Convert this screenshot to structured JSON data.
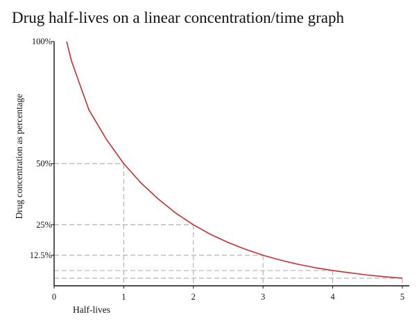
{
  "chart_data": {
    "type": "line",
    "title": "Drug half-lives on a linear concentration/time graph",
    "xlabel": "Half-lives",
    "ylabel": "Drug concentration as percentage",
    "xlim": [
      0,
      5.1
    ],
    "ylim": [
      0,
      100
    ],
    "x_ticks": [
      {
        "value": 0,
        "label": "0"
      },
      {
        "value": 1,
        "label": "1"
      },
      {
        "value": 2,
        "label": "2"
      },
      {
        "value": 3,
        "label": "3"
      },
      {
        "value": 4,
        "label": "4"
      },
      {
        "value": 5,
        "label": "5"
      }
    ],
    "y_ticks": [
      {
        "value": 100,
        "label": "100%"
      },
      {
        "value": 50,
        "label": "50%"
      },
      {
        "value": 25,
        "label": "25%"
      },
      {
        "value": 12.5,
        "label": "12.5%"
      }
    ],
    "series": [
      {
        "x": [
          0.18,
          0.25,
          0.35,
          0.5,
          0.75,
          1,
          1.25,
          1.5,
          1.75,
          2,
          2.25,
          2.5,
          2.75,
          3,
          3.25,
          3.5,
          3.75,
          4,
          4.25,
          4.5,
          4.75,
          5
        ],
        "y": [
          100,
          92,
          84,
          72,
          60,
          50,
          42,
          35.4,
          29.7,
          25,
          21,
          17.7,
          14.9,
          12.5,
          10.5,
          8.8,
          7.4,
          6.25,
          5.3,
          4.4,
          3.7,
          3.1
        ],
        "color": "#cc2b2b"
      }
    ],
    "guide_lines": [
      {
        "x": 1,
        "y": 50
      },
      {
        "x": 2,
        "y": 25
      },
      {
        "x": 3,
        "y": 12.5
      },
      {
        "x": 4,
        "y": 6.25
      },
      {
        "x": 5,
        "y": 3.125
      }
    ],
    "grid": false,
    "guide_color": "#b3b3b3",
    "axis_color": "#111111"
  }
}
